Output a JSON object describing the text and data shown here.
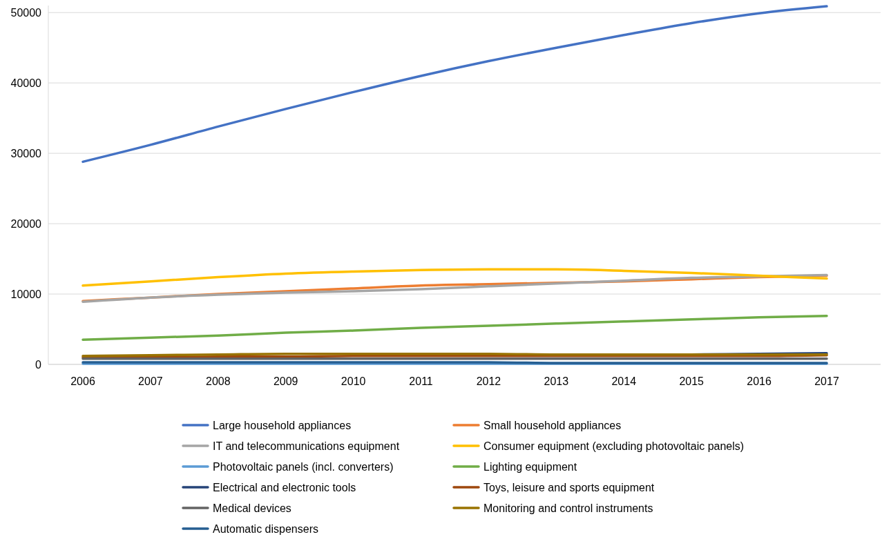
{
  "chart_data": {
    "type": "line",
    "categories": [
      "2006",
      "2007",
      "2008",
      "2009",
      "2010",
      "2011",
      "2012",
      "2013",
      "2014",
      "2015",
      "2016",
      "2017"
    ],
    "ylim": [
      0,
      51000
    ],
    "yticks": [
      0,
      10000,
      20000,
      30000,
      40000,
      50000
    ],
    "grid": "y",
    "legend": "bottom",
    "marker": "none",
    "line_style": "solid",
    "series": [
      {
        "name": "Large household appliances",
        "color": "#4472c4",
        "values": [
          28800,
          31200,
          33800,
          36300,
          38700,
          41000,
          43100,
          45000,
          46800,
          48500,
          49900,
          50900
        ]
      },
      {
        "name": "Small household appliances",
        "color": "#ed7d31",
        "values": [
          9000,
          9500,
          10000,
          10400,
          10800,
          11200,
          11400,
          11600,
          11800,
          12100,
          12400,
          12600
        ]
      },
      {
        "name": "IT and telecommunications equipment",
        "color": "#a5a5a5",
        "values": [
          8900,
          9500,
          9900,
          10200,
          10400,
          10700,
          11100,
          11500,
          11900,
          12300,
          12500,
          12700
        ]
      },
      {
        "name": "Consumer equipment (excluding photovoltaic panels)",
        "color": "#ffc000",
        "values": [
          11200,
          11800,
          12400,
          12900,
          13200,
          13400,
          13500,
          13500,
          13300,
          13000,
          12600,
          12200
        ]
      },
      {
        "name": "Photovoltaic panels (incl. converters)",
        "color": "#5b9bd5",
        "values": [
          100,
          100,
          100,
          100,
          100,
          100,
          100,
          100,
          100,
          100,
          100,
          100
        ]
      },
      {
        "name": "Lighting equipment",
        "color": "#70ad47",
        "values": [
          3500,
          3800,
          4100,
          4500,
          4800,
          5200,
          5500,
          5800,
          6100,
          6400,
          6700,
          6900
        ]
      },
      {
        "name": "Electrical and electronic tools",
        "color": "#264478",
        "values": [
          null,
          null,
          null,
          null,
          null,
          null,
          null,
          null,
          null,
          1400,
          1500,
          1600
        ]
      },
      {
        "name": "Toys, leisure and sports equipment",
        "color": "#9e480e",
        "values": [
          1000,
          1000,
          1100,
          1100,
          1200,
          1200,
          1200,
          1200,
          1200,
          1200,
          1200,
          1300
        ]
      },
      {
        "name": "Medical devices",
        "color": "#636363",
        "values": [
          800,
          800,
          800,
          800,
          800,
          800,
          800,
          800,
          800,
          800,
          800,
          800
        ]
      },
      {
        "name": "Monitoring and control instruments",
        "color": "#997300",
        "values": [
          1200,
          1300,
          1400,
          1500,
          1500,
          1500,
          1500,
          1400,
          1400,
          1400,
          1400,
          1400
        ]
      },
      {
        "name": "Automatic dispensers",
        "color": "#255e91",
        "values": [
          300,
          300,
          300,
          300,
          300,
          300,
          300,
          200,
          200,
          200,
          200,
          200
        ]
      }
    ]
  }
}
